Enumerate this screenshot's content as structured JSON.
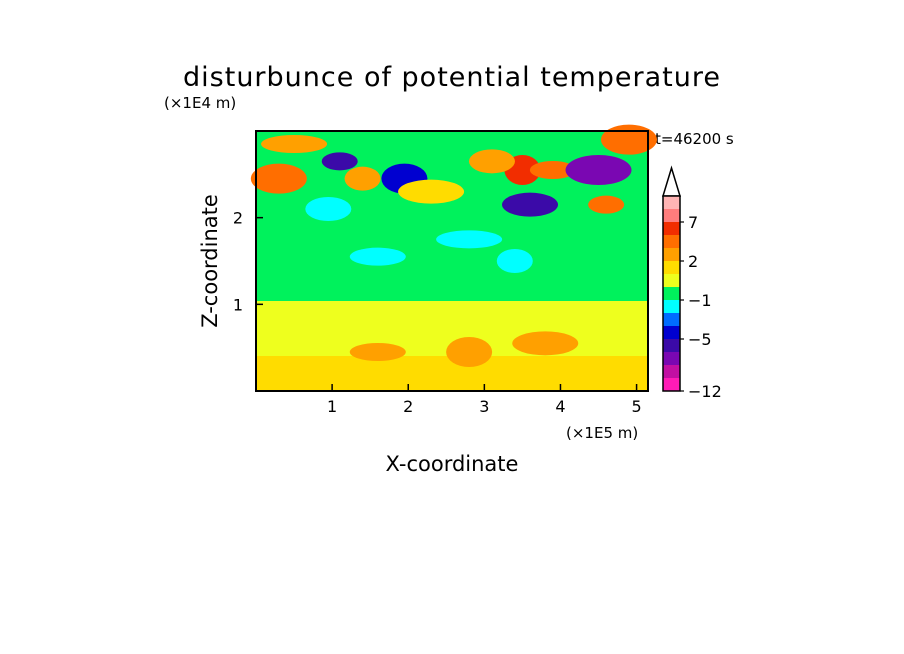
{
  "chart_data": {
    "type": "heatmap",
    "title": "disturbunce of potential temperature",
    "time_label": "t=46200 s",
    "xlabel": "X-coordinate",
    "ylabel": "Z-coordinate",
    "x_unit": "(×1E5 m)",
    "y_unit": "(×1E4 m)",
    "xlim": [
      0,
      5.15
    ],
    "ylim": [
      0,
      3.0
    ],
    "x_ticks": [
      {
        "value": 1,
        "label": "1"
      },
      {
        "value": 2,
        "label": "2"
      },
      {
        "value": 3,
        "label": "3"
      },
      {
        "value": 4,
        "label": "4"
      },
      {
        "value": 5,
        "label": "5"
      }
    ],
    "y_ticks": [
      {
        "value": 1,
        "label": "1"
      },
      {
        "value": 2,
        "label": "2"
      }
    ],
    "colorbar": {
      "levels": [
        -12,
        -11,
        -9,
        -7,
        -5,
        -3,
        -2,
        -1,
        0,
        1,
        2,
        3,
        5,
        7,
        9,
        11
      ],
      "colors": [
        "#ff1bb6",
        "#c20fa3",
        "#7a07b2",
        "#3b0aa8",
        "#0000d0",
        "#006cff",
        "#00ffff",
        "#00f25c",
        "#eeff1e",
        "#ffdc00",
        "#ffa000",
        "#ff6e00",
        "#f22d00",
        "#ff7d7d",
        "#ffb4b4"
      ],
      "extend": "max",
      "labels": [
        {
          "value": -12,
          "label": "−12"
        },
        {
          "value": -5,
          "label": "−5"
        },
        {
          "value": -1,
          "label": "−1"
        },
        {
          "value": 2,
          "label": "2"
        },
        {
          "value": 7,
          "label": "7"
        }
      ]
    },
    "field_features": [
      {
        "x": 1.1,
        "z": 2.65,
        "value": -5.5
      },
      {
        "x": 0.95,
        "z": 2.1,
        "value": -1.5
      },
      {
        "x": 0.3,
        "z": 2.45,
        "value": 3
      },
      {
        "x": 0.5,
        "z": 2.85,
        "value": 2
      },
      {
        "x": 1.4,
        "z": 2.45,
        "value": 2.5
      },
      {
        "x": 1.95,
        "z": 2.45,
        "value": -4
      },
      {
        "x": 1.6,
        "z": 1.55,
        "value": -2
      },
      {
        "x": 2.3,
        "z": 2.3,
        "value": 1.5
      },
      {
        "x": 3.5,
        "z": 2.55,
        "value": 5
      },
      {
        "x": 3.9,
        "z": 2.55,
        "value": 3
      },
      {
        "x": 3.6,
        "z": 2.15,
        "value": -5.5
      },
      {
        "x": 4.5,
        "z": 2.55,
        "value": -8
      },
      {
        "x": 4.6,
        "z": 2.15,
        "value": 4.5
      },
      {
        "x": 3.1,
        "z": 2.65,
        "value": 2
      },
      {
        "x": 4.9,
        "z": 2.9,
        "value": 3
      },
      {
        "x": 2.8,
        "z": 1.75,
        "value": -1.5
      },
      {
        "x": 3.4,
        "z": 1.5,
        "value": -1.5
      },
      {
        "x": 2.8,
        "z": 0.45,
        "value": 2.2
      },
      {
        "x": 1.6,
        "z": 0.45,
        "value": 2.0
      },
      {
        "x": 3.8,
        "z": 0.55,
        "value": 2.0
      }
    ]
  }
}
